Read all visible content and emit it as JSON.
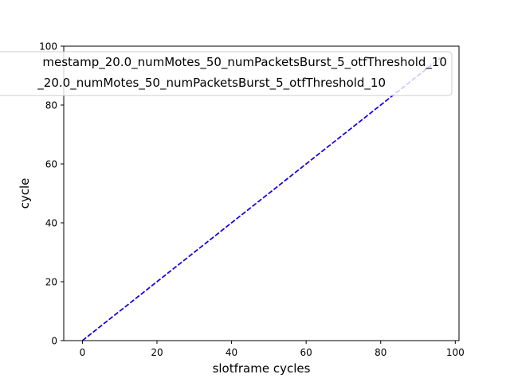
{
  "chart_data": {
    "type": "line",
    "title": "",
    "xlabel": "slotframe cycles",
    "ylabel": "cycle",
    "xlim": [
      -5,
      101
    ],
    "ylim": [
      0,
      100
    ],
    "xticks": [
      0,
      20,
      40,
      60,
      80,
      100
    ],
    "yticks": [
      0,
      20,
      40,
      60,
      80,
      100
    ],
    "grid": false,
    "legend_position": "top",
    "series": [
      {
        "name": "mestamp_20.0_numMotes_50_numPacketsBurst_5_otfThreshold_10",
        "color": "#ff0000",
        "style": "dashed",
        "x": [
          0,
          96
        ],
        "y": [
          0,
          96
        ]
      },
      {
        "name": "_20.0_numMotes_50_numPacketsBurst_5_otfThreshold_10",
        "color": "#0000ff",
        "style": "dashed",
        "x": [
          0,
          96
        ],
        "y": [
          0,
          96
        ]
      }
    ]
  }
}
